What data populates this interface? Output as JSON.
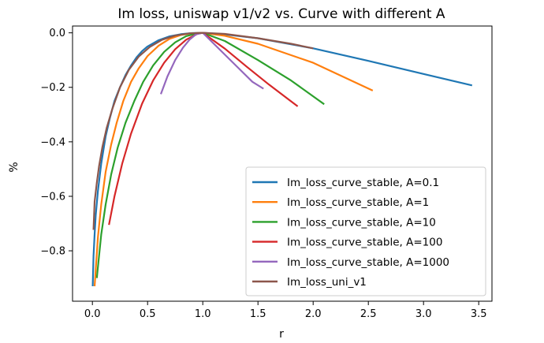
{
  "chart_data": {
    "type": "line",
    "title": "Im loss, uniswap v1/v2 vs. Curve with different A",
    "xlabel": "r",
    "ylabel": "%",
    "xlim": [
      -0.18,
      3.62
    ],
    "ylim": [
      -0.985,
      0.025
    ],
    "xticks": [
      0.0,
      0.5,
      1.0,
      1.5,
      2.0,
      2.5,
      3.0,
      3.5
    ],
    "xtick_labels": [
      "0.0",
      "0.5",
      "1.0",
      "1.5",
      "2.0",
      "2.5",
      "3.0",
      "3.5"
    ],
    "yticks": [
      0.0,
      -0.2,
      -0.4,
      -0.6,
      -0.8
    ],
    "ytick_labels": [
      "0.0",
      "−0.2",
      "−0.4",
      "−0.6",
      "−0.8"
    ],
    "grid": false,
    "legend_position": "lower-right",
    "series": [
      {
        "name": "Im_loss_curve_stable, A=0.1",
        "color": "#1f77b4",
        "x": [
          0.003,
          0.01,
          0.02,
          0.03,
          0.05,
          0.08,
          0.12,
          0.16,
          0.2,
          0.25,
          0.3,
          0.35,
          0.4,
          0.45,
          0.5,
          0.6,
          0.7,
          0.8,
          0.9,
          1.0,
          1.2,
          1.5,
          2.0,
          2.5,
          3.0,
          3.44
        ],
        "y": [
          -0.93,
          -0.82,
          -0.74,
          -0.67,
          -0.58,
          -0.48,
          -0.38,
          -0.31,
          -0.25,
          -0.2,
          -0.155,
          -0.12,
          -0.09,
          -0.067,
          -0.05,
          -0.027,
          -0.013,
          -0.005,
          -0.001,
          0.0,
          -0.006,
          -0.02,
          -0.057,
          -0.103,
          -0.151,
          -0.193
        ]
      },
      {
        "name": "Im_loss_curve_stable, A=1",
        "color": "#ff7f0e",
        "x": [
          0.02,
          0.05,
          0.08,
          0.12,
          0.17,
          0.22,
          0.28,
          0.35,
          0.42,
          0.5,
          0.6,
          0.7,
          0.8,
          0.9,
          1.0,
          1.2,
          1.5,
          2.0,
          2.54
        ],
        "y": [
          -0.93,
          -0.75,
          -0.63,
          -0.51,
          -0.41,
          -0.33,
          -0.25,
          -0.18,
          -0.13,
          -0.085,
          -0.047,
          -0.022,
          -0.008,
          -0.0015,
          0.0,
          -0.011,
          -0.04,
          -0.11,
          -0.212
        ]
      },
      {
        "name": "Im_loss_curve_stable, A=10",
        "color": "#2ca02c",
        "x": [
          0.04,
          0.08,
          0.12,
          0.17,
          0.23,
          0.3,
          0.38,
          0.46,
          0.55,
          0.65,
          0.75,
          0.85,
          0.95,
          1.0,
          1.2,
          1.5,
          1.8,
          2.1
        ],
        "y": [
          -0.9,
          -0.74,
          -0.63,
          -0.52,
          -0.42,
          -0.33,
          -0.25,
          -0.18,
          -0.12,
          -0.07,
          -0.035,
          -0.012,
          -0.002,
          0.0,
          -0.03,
          -0.1,
          -0.175,
          -0.262
        ]
      },
      {
        "name": "Im_loss_curve_stable, A=100",
        "color": "#d62728",
        "x": [
          0.15,
          0.2,
          0.27,
          0.35,
          0.45,
          0.55,
          0.65,
          0.75,
          0.85,
          0.95,
          1.0,
          1.2,
          1.4,
          1.6,
          1.86
        ],
        "y": [
          -0.705,
          -0.6,
          -0.48,
          -0.37,
          -0.26,
          -0.175,
          -0.11,
          -0.06,
          -0.025,
          -0.004,
          0.0,
          -0.058,
          -0.125,
          -0.19,
          -0.27
        ]
      },
      {
        "name": "Im_loss_curve_stable, A=1000",
        "color": "#9467bd",
        "x": [
          0.62,
          0.68,
          0.75,
          0.82,
          0.88,
          0.94,
          1.0,
          1.15,
          1.3,
          1.45,
          1.55
        ],
        "y": [
          -0.225,
          -0.16,
          -0.1,
          -0.055,
          -0.025,
          -0.005,
          0.0,
          -0.06,
          -0.12,
          -0.18,
          -0.205
        ]
      },
      {
        "name": "Im_loss_uni_v1",
        "color": "#8c564b",
        "x": [
          0.01,
          0.02,
          0.04,
          0.06,
          0.09,
          0.13,
          0.18,
          0.25,
          0.33,
          0.42,
          0.52,
          0.63,
          0.75,
          0.88,
          1.0,
          1.2,
          1.5,
          1.8,
          2.0
        ],
        "y": [
          -0.723,
          -0.62,
          -0.55,
          -0.49,
          -0.42,
          -0.348,
          -0.28,
          -0.2,
          -0.136,
          -0.087,
          -0.052,
          -0.026,
          -0.01,
          -0.002,
          0.0,
          -0.004,
          -0.02,
          -0.04,
          -0.057
        ]
      }
    ]
  }
}
